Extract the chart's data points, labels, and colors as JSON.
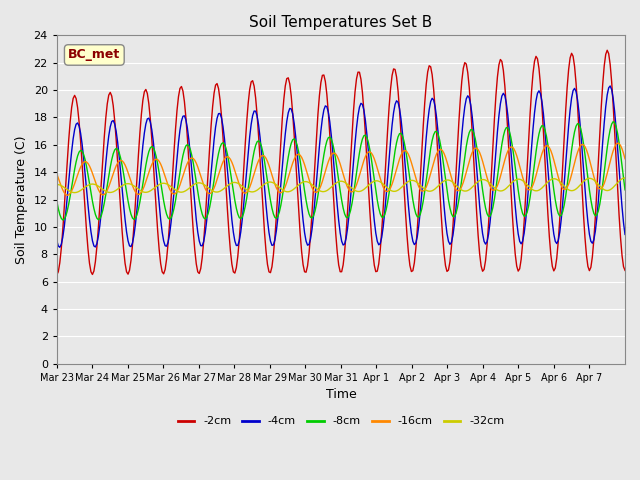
{
  "title": "Soil Temperatures Set B",
  "xlabel": "Time",
  "ylabel": "Soil Temperature (C)",
  "label_text": "BC_met",
  "legend": [
    "-2cm",
    "-4cm",
    "-8cm",
    "-16cm",
    "-32cm"
  ],
  "colors": [
    "#cc0000",
    "#0000cc",
    "#00cc00",
    "#ff8800",
    "#cccc00"
  ],
  "ylim": [
    0,
    24
  ],
  "yticks": [
    0,
    2,
    4,
    6,
    8,
    10,
    12,
    14,
    16,
    18,
    20,
    22,
    24
  ],
  "bg_color": "#e8e8e8",
  "n_days": 16,
  "points_per_day": 24,
  "tick_dates": [
    "Mar 23",
    "Mar 24",
    "Mar 25",
    "Mar 26",
    "Mar 27",
    "Mar 28",
    "Mar 29",
    "Mar 30",
    "Mar 31",
    "Apr 1",
    "Apr 2",
    "Apr 3",
    "Apr 4",
    "Apr 5",
    "Apr 6",
    "Apr 7"
  ]
}
